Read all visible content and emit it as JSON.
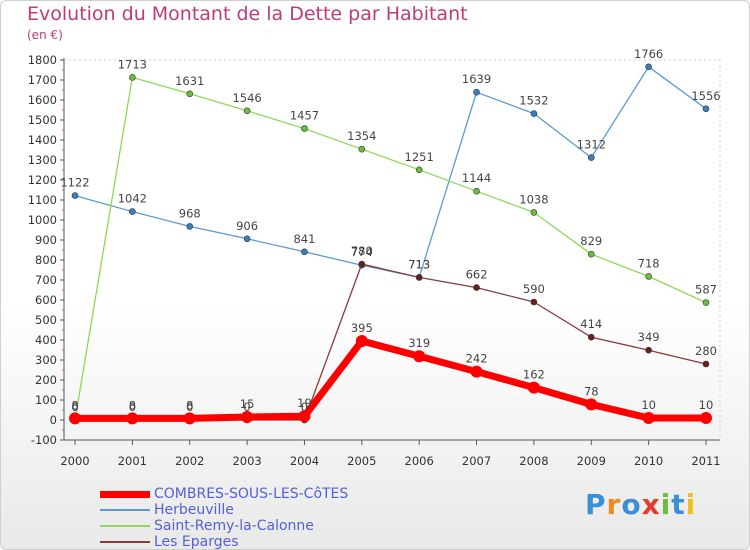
{
  "title": "Evolution du Montant de la Dette par Habitant",
  "subtitle": "(en €)",
  "logo": {
    "text": "Proxiti",
    "colors": [
      "#3a8fd8",
      "#f08a1c",
      "#3a8fd8",
      "#e83a2c",
      "#6abf3a",
      "#3a8fd8",
      "#f0c020"
    ]
  },
  "chart_data": {
    "type": "line",
    "title": "Evolution du Montant de la Dette par Habitant",
    "subtitle": "(en €)",
    "x": [
      "2000",
      "2001",
      "2002",
      "2003",
      "2004",
      "2005",
      "2006",
      "2007",
      "2008",
      "2009",
      "2010",
      "2011"
    ],
    "ylim": [
      -100,
      1800
    ],
    "yticks": [
      -100,
      0,
      100,
      200,
      300,
      400,
      500,
      600,
      700,
      800,
      900,
      1000,
      1100,
      1200,
      1300,
      1400,
      1500,
      1600,
      1700,
      1800
    ],
    "grid": false,
    "legend": "bottom-left",
    "series": [
      {
        "name": "COMBRES-SOUS-LES-CôTES",
        "color": "#ff0000",
        "marker": "#ff0000",
        "width": 7,
        "values": [
          8,
          8,
          8,
          15,
          19,
          395,
          319,
          242,
          162,
          78,
          10,
          10
        ],
        "labels": [
          "8",
          "8",
          "8",
          "15",
          "19",
          "395",
          "319",
          "242",
          "162",
          "78",
          "10",
          "10"
        ]
      },
      {
        "name": "Herbeuville",
        "color": "#5b9bd5",
        "marker": "#3a7ebf",
        "width": 1.3,
        "values": [
          1122,
          1042,
          968,
          906,
          841,
          774,
          713,
          1639,
          1532,
          1312,
          1766,
          1556
        ],
        "labels": [
          "1122",
          "1042",
          "968",
          "906",
          "841",
          "774",
          "713",
          "1639",
          "1532",
          "1312",
          "1766",
          "1556"
        ]
      },
      {
        "name": "Saint-Remy-la-Calonne",
        "color": "#8fd85a",
        "marker": "#6abf3a",
        "width": 1.3,
        "values": [
          0,
          1713,
          1631,
          1546,
          1457,
          1354,
          1251,
          1144,
          1038,
          829,
          718,
          587
        ],
        "labels": [
          "0",
          "1713",
          "1631",
          "1546",
          "1457",
          "1354",
          "1251",
          "1144",
          "1038",
          "829",
          "718",
          "587"
        ]
      },
      {
        "name": "Les Eparges",
        "color": "#8b3a3a",
        "marker": "#6b1f1f",
        "width": 1.3,
        "values": [
          0,
          0,
          0,
          0,
          0,
          780,
          713,
          662,
          590,
          414,
          349,
          280
        ],
        "labels": [
          "0",
          "0",
          "0",
          "0",
          "0",
          "780",
          "713",
          "662",
          "590",
          "414",
          "349",
          "280"
        ]
      }
    ]
  }
}
